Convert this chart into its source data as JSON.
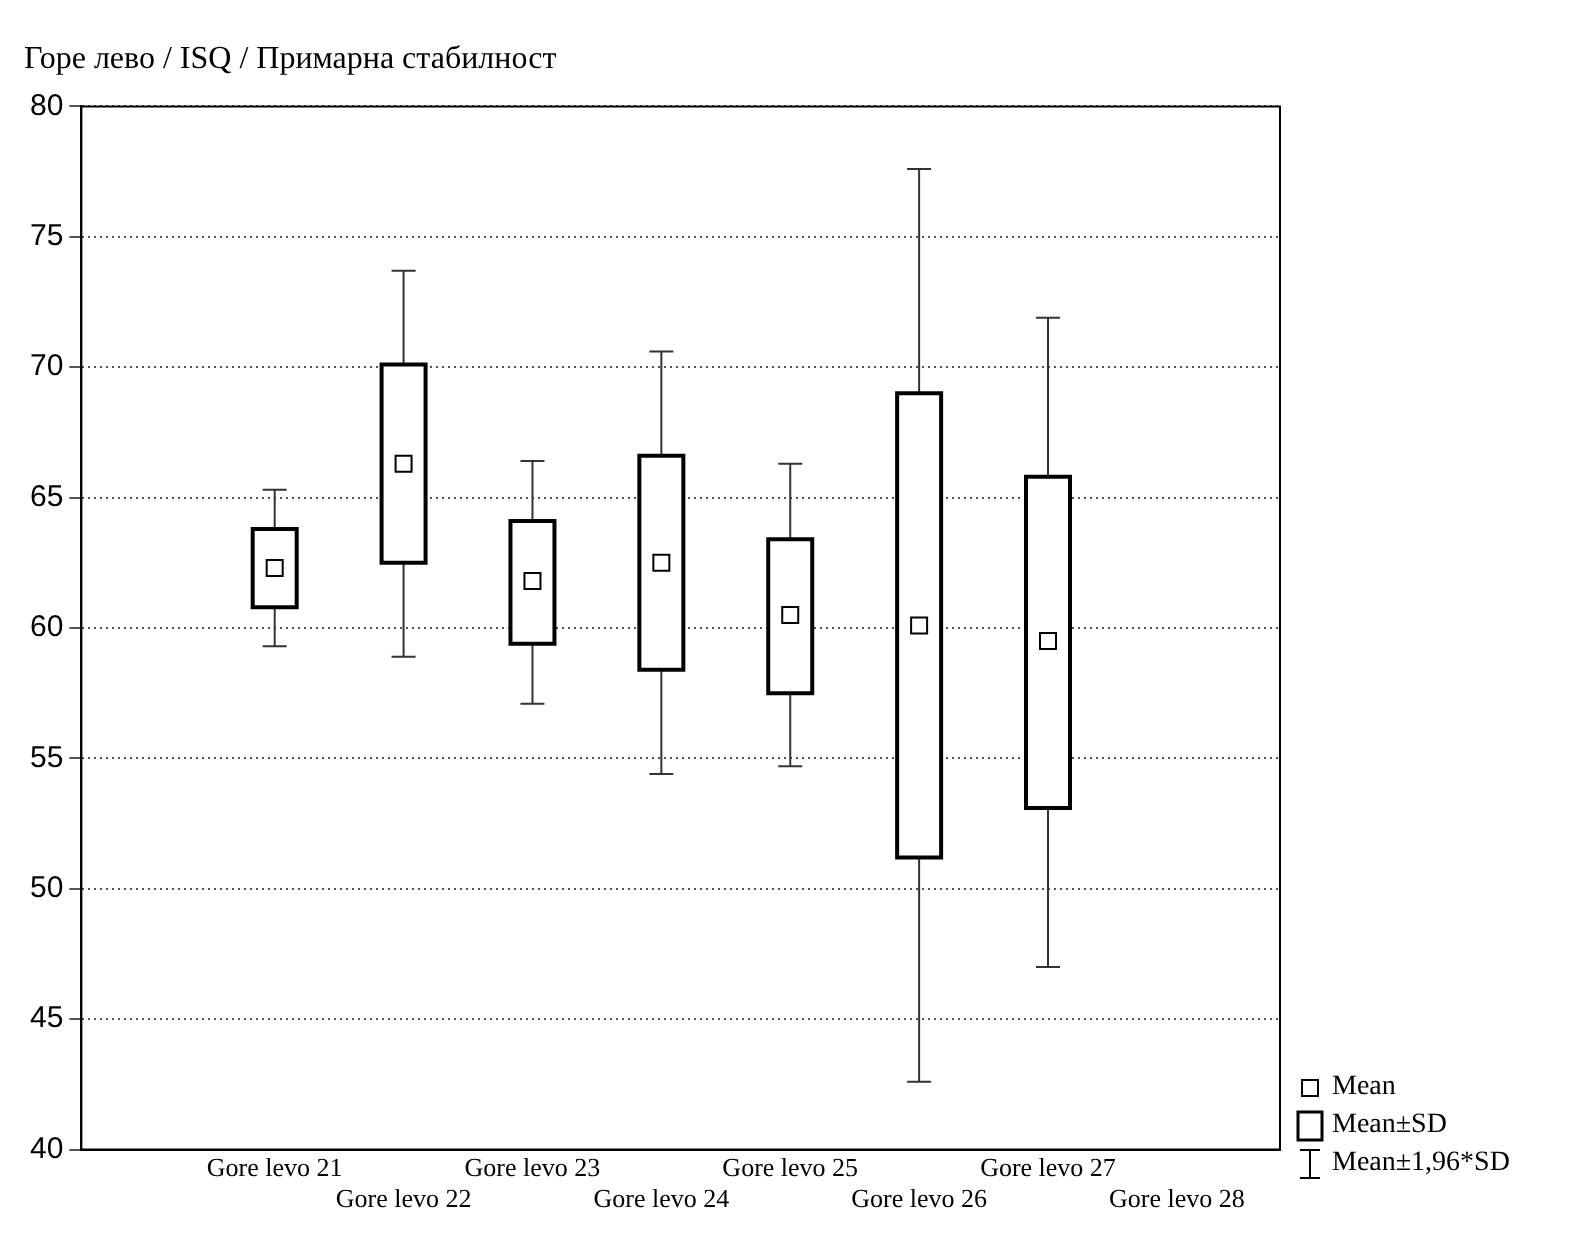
{
  "chart_data": {
    "type": "box",
    "title": "Горе лево / ISQ / Примарна стабилност",
    "categories": [
      "Gore levo 21",
      "Gore levo 22",
      "Gore levo 23",
      "Gore levo 24",
      "Gore levo 25",
      "Gore levo 26",
      "Gore levo 27",
      "Gore levo 28"
    ],
    "boxes": [
      {
        "low": 59.3,
        "q1": 60.8,
        "q3": 63.8,
        "high": 65.3,
        "mean": 62.3
      },
      {
        "low": 58.9,
        "q1": 62.5,
        "q3": 70.1,
        "high": 73.7,
        "mean": 66.3
      },
      {
        "low": 57.1,
        "q1": 59.4,
        "q3": 64.1,
        "high": 66.4,
        "mean": 61.8
      },
      {
        "low": 54.4,
        "q1": 58.4,
        "q3": 66.6,
        "high": 70.6,
        "mean": 62.5
      },
      {
        "low": 54.7,
        "q1": 57.5,
        "q3": 63.4,
        "high": 66.3,
        "mean": 60.5
      },
      {
        "low": 42.6,
        "q1": 51.2,
        "q3": 69.0,
        "high": 77.6,
        "mean": 60.1
      },
      {
        "low": 47.0,
        "q1": 53.1,
        "q3": 65.8,
        "high": 71.9,
        "mean": 59.5
      },
      null
    ],
    "ylim": [
      40,
      80
    ],
    "yticks": [
      40,
      45,
      50,
      55,
      60,
      65,
      70,
      75,
      80
    ],
    "grid": "y",
    "marker": "square",
    "annotations": [
      "Mean",
      "Mean±SD",
      "Mean±1,96*SD"
    ]
  }
}
